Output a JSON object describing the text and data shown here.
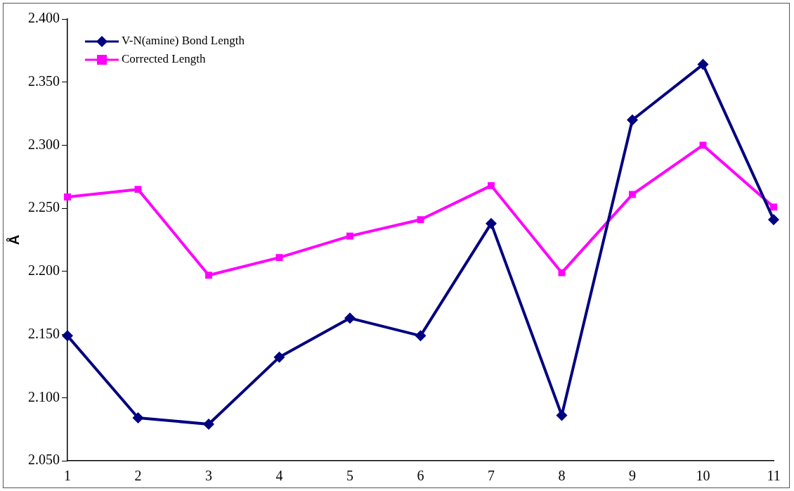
{
  "chart_data": {
    "type": "line",
    "ylabel": "Å",
    "categories": [
      "1",
      "2",
      "3",
      "4",
      "5",
      "6",
      "7",
      "8",
      "9",
      "10",
      "11"
    ],
    "series": [
      {
        "name": "V-N(amine) Bond Length",
        "color": "#000080",
        "marker": "diamond",
        "values": [
          2.149,
          2.084,
          2.079,
          2.132,
          2.163,
          2.149,
          2.238,
          2.086,
          2.32,
          2.364,
          2.241
        ]
      },
      {
        "name": "Corrected Length",
        "color": "#ff00ff",
        "marker": "square",
        "values": [
          2.259,
          2.265,
          2.197,
          2.211,
          2.228,
          2.241,
          2.268,
          2.199,
          2.261,
          2.3,
          2.251
        ]
      }
    ],
    "ylim": [
      2.05,
      2.4
    ],
    "yticks": [
      {
        "value": 2.05,
        "label": "2.050"
      },
      {
        "value": 2.1,
        "label": "2.100"
      },
      {
        "value": 2.15,
        "label": "2.150"
      },
      {
        "value": 2.2,
        "label": "2.200"
      },
      {
        "value": 2.25,
        "label": "2.250"
      },
      {
        "value": 2.3,
        "label": "2.300"
      },
      {
        "value": 2.35,
        "label": "2.350"
      },
      {
        "value": 2.4,
        "label": "2.400"
      }
    ],
    "grid": false,
    "legend": "top left",
    "line_style": "solid"
  }
}
